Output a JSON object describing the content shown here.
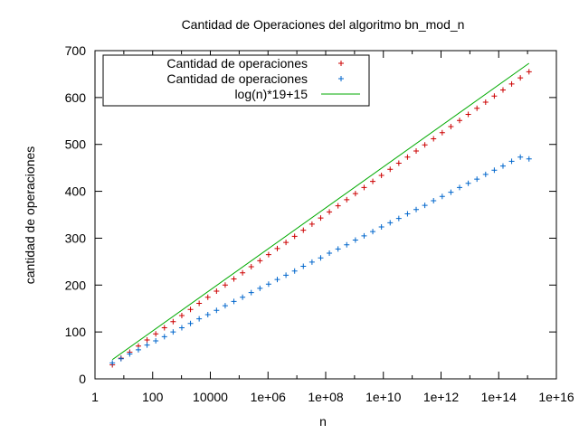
{
  "chart_data": {
    "type": "scatter",
    "title": "Cantidad de Operaciones del algoritmo bn_mod_n",
    "xlabel": "n",
    "ylabel": "cantidad de operaciones",
    "x_scale": "log",
    "xlim": [
      1,
      1e+16
    ],
    "ylim": [
      0,
      700
    ],
    "grid": false,
    "legend_position": "top-left",
    "x_ticks": [
      {
        "value": 1,
        "label": "1"
      },
      {
        "value": 100,
        "label": "100"
      },
      {
        "value": 10000,
        "label": "10000"
      },
      {
        "value": 1000000.0,
        "label": "1e+06"
      },
      {
        "value": 100000000.0,
        "label": "1e+08"
      },
      {
        "value": 10000000000.0,
        "label": "1e+10"
      },
      {
        "value": 1000000000000.0,
        "label": "1e+12"
      },
      {
        "value": 100000000000000.0,
        "label": "1e+14"
      },
      {
        "value": 1e+16,
        "label": "1e+16"
      }
    ],
    "y_ticks": [
      0,
      100,
      200,
      300,
      400,
      500,
      600,
      700
    ],
    "series": [
      {
        "name": "Cantidad de operaciones",
        "color": "#cc0000",
        "marker": "plus",
        "x": [
          4,
          8,
          16,
          32,
          64,
          128,
          256,
          512,
          1024,
          2048,
          4096,
          8192,
          16384,
          32768,
          65536,
          131072,
          262144,
          524288,
          1048576,
          2097152,
          4194304,
          8388608,
          16777216,
          33554432,
          67108864,
          134217728,
          268435456,
          536870912,
          1073741824,
          2147483648,
          4294967296,
          8589934592,
          17179869184,
          34359738368,
          68719476736,
          137438953472,
          274877906944,
          549755813888,
          1099511627776,
          2199023255552,
          4398046511104,
          8796093022208,
          17592186044416,
          35184372088832,
          70368744177664,
          140737488355328,
          281474976710656,
          562949953421312,
          1125899906842624
        ],
        "y": [
          30,
          44,
          57,
          70,
          83,
          96,
          109,
          122,
          135,
          148,
          161,
          174,
          187,
          200,
          213,
          226,
          239,
          252,
          265,
          278,
          291,
          304,
          317,
          330,
          343,
          356,
          369,
          382,
          395,
          408,
          421,
          434,
          447,
          460,
          473,
          486,
          499,
          512,
          525,
          538,
          551,
          564,
          577,
          590,
          603,
          616,
          629,
          642,
          655
        ]
      },
      {
        "name": "Cantidad de operaciones",
        "color": "#0066cc",
        "marker": "plus",
        "x": [
          4,
          8,
          16,
          32,
          64,
          128,
          256,
          512,
          1024,
          2048,
          4096,
          8192,
          16384,
          32768,
          65536,
          131072,
          262144,
          524288,
          1048576,
          2097152,
          4194304,
          8388608,
          16777216,
          33554432,
          67108864,
          134217728,
          268435456,
          536870912,
          1073741824,
          2147483648,
          4294967296,
          8589934592,
          17179869184,
          34359738368,
          68719476736,
          137438953472,
          274877906944,
          549755813888,
          1099511627776,
          2199023255552,
          4398046511104,
          8796093022208,
          17592186044416,
          35184372088832,
          70368744177664,
          140737488355328,
          281474976710656,
          562949953421312,
          1125899906842624
        ],
        "y": [
          34,
          43,
          53,
          62,
          72,
          81,
          90,
          100,
          109,
          118,
          128,
          137,
          146,
          156,
          165,
          174,
          184,
          193,
          202,
          212,
          221,
          230,
          240,
          249,
          258,
          268,
          277,
          286,
          296,
          305,
          314,
          324,
          333,
          342,
          352,
          361,
          370,
          380,
          389,
          398,
          408,
          417,
          426,
          436,
          445,
          454,
          464,
          473,
          469
        ]
      },
      {
        "name": "log(n)*19+15",
        "color": "#00aa00",
        "marker": "line",
        "x": [
          4,
          1125899906842624
        ],
        "y": [
          41,
          673
        ]
      }
    ]
  }
}
